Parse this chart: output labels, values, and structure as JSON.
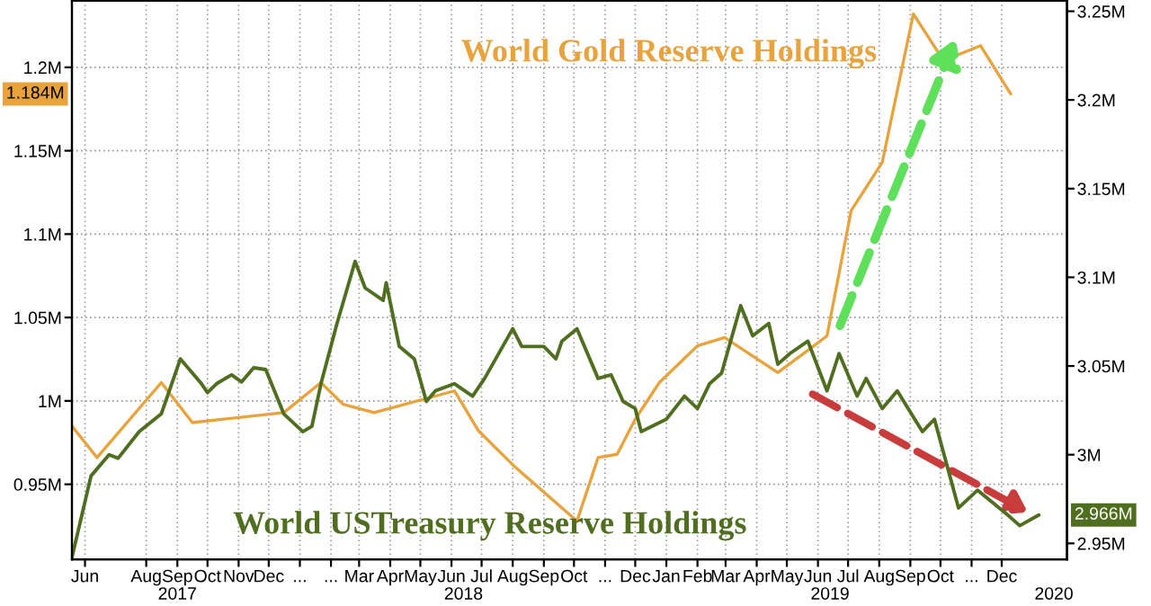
{
  "chart_data": {
    "type": "line",
    "series": [
      {
        "name": "World Gold Reserve Holdings",
        "color": "#e8a33c",
        "x": [
          "2017-05-19",
          "2017-06-13",
          "2017-08-16",
          "2017-09-16",
          "2017-12-16",
          "2018-01-22",
          "2018-02-13",
          "2018-03-16",
          "2018-06-04",
          "2018-06-28",
          "2018-08-04",
          "2018-10-04",
          "2018-10-25",
          "2018-11-13",
          "2018-12-01",
          "2018-12-25",
          "2019-02-01",
          "2019-02-28",
          "2019-04-22",
          "2019-05-28",
          "2019-06-10",
          "2019-07-04",
          "2019-08-04",
          "2019-09-04",
          "2019-10-04",
          "2019-11-10",
          "2019-12-10"
        ],
        "values": [
          0.985,
          0.966,
          1.011,
          0.987,
          0.993,
          1.011,
          0.998,
          0.993,
          1.006,
          0.982,
          0.96,
          0.928,
          0.966,
          0.968,
          0.989,
          1.011,
          1.033,
          1.038,
          1.017,
          1.033,
          1.039,
          1.114,
          1.143,
          1.232,
          1.204,
          1.213,
          1.184
        ]
      },
      {
        "name": "World USTreasury Reserve Holdings",
        "color": "#4f6e1f",
        "axis": "y2",
        "x": [
          "2017-05-19",
          "2017-06-07",
          "2017-06-25",
          "2017-07-04",
          "2017-07-25",
          "2017-08-16",
          "2017-09-04",
          "2017-09-25",
          "2017-10-01",
          "2017-10-10",
          "2017-10-25",
          "2017-11-04",
          "2017-11-16",
          "2017-11-28",
          "2017-12-16",
          "2018-01-04",
          "2018-01-13",
          "2018-01-22",
          "2018-02-07",
          "2018-02-25",
          "2018-03-07",
          "2018-03-25",
          "2018-03-28",
          "2018-04-10",
          "2018-04-25",
          "2018-05-07",
          "2018-05-16",
          "2018-06-04",
          "2018-06-22",
          "2018-07-04",
          "2018-08-01",
          "2018-08-10",
          "2018-09-01",
          "2018-09-13",
          "2018-09-19",
          "2018-10-04",
          "2018-10-25",
          "2018-11-07",
          "2018-11-19",
          "2018-12-01",
          "2018-12-07",
          "2019-01-01",
          "2019-01-19",
          "2019-02-01",
          "2019-02-13",
          "2019-02-25",
          "2019-03-16",
          "2019-03-28",
          "2019-04-13",
          "2019-04-22",
          "2019-05-04",
          "2019-05-22",
          "2019-06-10",
          "2019-06-22",
          "2019-07-10",
          "2019-07-19",
          "2019-08-04",
          "2019-08-19",
          "2019-09-13",
          "2019-09-25",
          "2019-10-19",
          "2019-11-07",
          "2019-12-07",
          "2019-12-19",
          "2020-01-07"
        ],
        "values": [
          2.942,
          2.988,
          3.0,
          2.998,
          3.013,
          3.023,
          3.054,
          3.04,
          3.035,
          3.04,
          3.045,
          3.041,
          3.049,
          3.048,
          3.023,
          3.013,
          3.016,
          3.04,
          3.074,
          3.109,
          3.094,
          3.087,
          3.097,
          3.061,
          3.054,
          3.03,
          3.036,
          3.04,
          3.033,
          3.043,
          3.071,
          3.061,
          3.061,
          3.054,
          3.064,
          3.071,
          3.043,
          3.045,
          3.03,
          3.026,
          3.013,
          3.02,
          3.033,
          3.026,
          3.04,
          3.046,
          3.084,
          3.067,
          3.074,
          3.051,
          3.057,
          3.064,
          3.036,
          3.057,
          3.033,
          3.043,
          3.026,
          3.036,
          3.013,
          3.02,
          2.97,
          2.98,
          2.966,
          2.96,
          2.966
        ]
      }
    ],
    "xlim": [
      "2017-05-19",
      "2020-02-04"
    ],
    "xticks": [
      {
        "value": "2017-06-01",
        "label": "Jun"
      },
      {
        "value": "2017-08-01",
        "label": "Aug"
      },
      {
        "value": "2017-09-01",
        "label": "Sep"
      },
      {
        "value": "2017-10-01",
        "label": "Oct"
      },
      {
        "value": "2017-11-01",
        "label": "Nov"
      },
      {
        "value": "2017-12-01",
        "label": "Dec"
      },
      {
        "value": "2018-01-01",
        "label": "..."
      },
      {
        "value": "2018-02-01",
        "label": "..."
      },
      {
        "value": "2018-03-01",
        "label": "Mar"
      },
      {
        "value": "2018-04-01",
        "label": "Apr"
      },
      {
        "value": "2018-05-01",
        "label": "May"
      },
      {
        "value": "2018-06-01",
        "label": "Jun"
      },
      {
        "value": "2018-07-01",
        "label": "Jul"
      },
      {
        "value": "2018-08-01",
        "label": "Aug"
      },
      {
        "value": "2018-09-01",
        "label": "Sep"
      },
      {
        "value": "2018-10-01",
        "label": "Oct"
      },
      {
        "value": "2018-11-01",
        "label": "..."
      },
      {
        "value": "2018-12-01",
        "label": "Dec"
      },
      {
        "value": "2019-01-01",
        "label": "Jan"
      },
      {
        "value": "2019-02-01",
        "label": "Feb"
      },
      {
        "value": "2019-03-01",
        "label": "Mar"
      },
      {
        "value": "2019-04-01",
        "label": "Apr"
      },
      {
        "value": "2019-05-01",
        "label": "May"
      },
      {
        "value": "2019-06-01",
        "label": "Jun"
      },
      {
        "value": "2019-07-01",
        "label": "Jul"
      },
      {
        "value": "2019-08-01",
        "label": "Aug"
      },
      {
        "value": "2019-09-01",
        "label": "Sep"
      },
      {
        "value": "2019-10-01",
        "label": "Oct"
      },
      {
        "value": "2019-11-01",
        "label": "..."
      },
      {
        "value": "2019-12-01",
        "label": "Dec"
      }
    ],
    "x2lim": [
      "2017-05-19",
      "2020-02-04"
    ],
    "x2ticks": [
      {
        "value": "2017-09-01",
        "label": "2017"
      },
      {
        "value": "2018-06-13",
        "label": "2018"
      },
      {
        "value": "2019-06-13",
        "label": "2019"
      },
      {
        "value": "2020-01-22",
        "label": "2020"
      }
    ],
    "ylim": [
      0.905,
      1.24
    ],
    "yticks": [
      {
        "value": 0.95,
        "label": "0.95M"
      },
      {
        "value": 1.0,
        "label": "1M"
      },
      {
        "value": 1.05,
        "label": "1.05M"
      },
      {
        "value": 1.1,
        "label": "1.1M"
      },
      {
        "value": 1.15,
        "label": "1.15M"
      },
      {
        "value": 1.2,
        "label": "1.2M"
      }
    ],
    "y2lim": [
      2.941,
      3.256
    ],
    "y2ticks": [
      {
        "value": 2.95,
        "label": "2.95M"
      },
      {
        "value": 3.0,
        "label": "3M"
      },
      {
        "value": 3.05,
        "label": "3.05M"
      },
      {
        "value": 3.1,
        "label": "3.1M"
      },
      {
        "value": 3.15,
        "label": "3.15M"
      },
      {
        "value": 3.2,
        "label": "3.2M"
      },
      {
        "value": 3.25,
        "label": "3.25M"
      }
    ],
    "annotations": [
      "1.184M",
      "2.966M"
    ],
    "grid": true,
    "legend": false
  }
}
